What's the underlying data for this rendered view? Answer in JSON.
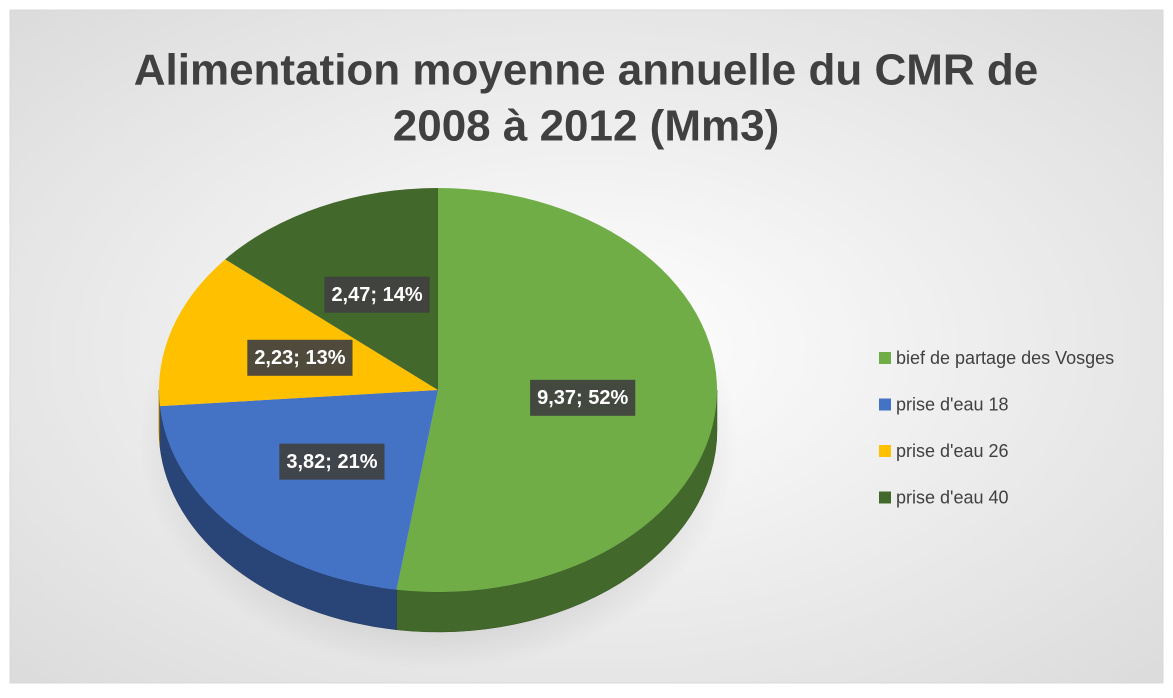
{
  "chart_data": {
    "type": "pie",
    "title": [
      "Alimentation moyenne annuelle du CMR de",
      "2008 à 2012 (Mm3)"
    ],
    "categories": [
      "bief de partage des Vosges",
      "prise d'eau 18",
      "prise d'eau 26",
      "prise d'eau 40"
    ],
    "values": [
      9.37,
      3.82,
      2.23,
      2.47
    ],
    "value_labels": [
      "9,37; 52%",
      "3,82; 21%",
      "2,23; 13%",
      "2,47; 14%"
    ],
    "colors": [
      "#70ad47",
      "#4472c4",
      "#ffc000",
      "#43682b"
    ],
    "legend": "right"
  }
}
